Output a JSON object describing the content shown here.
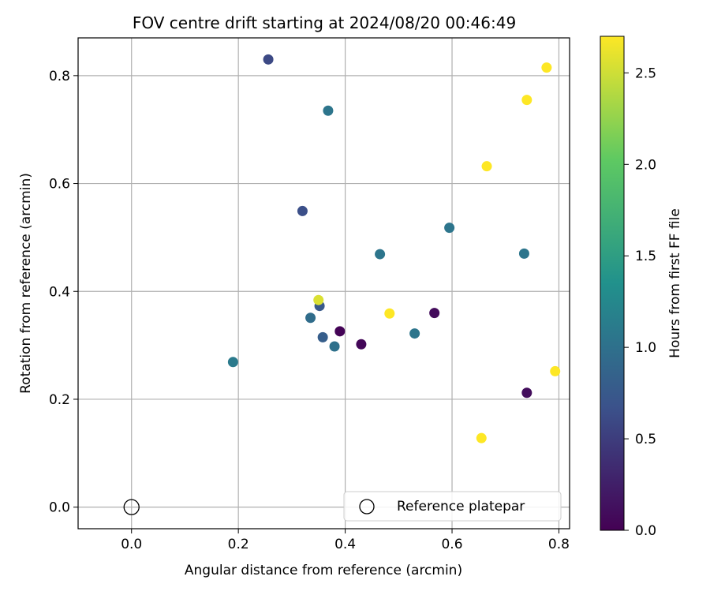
{
  "chart_data": {
    "type": "scatter",
    "title": "FOV centre drift starting at 2024/08/20 00:46:49",
    "xlabel": "Angular distance from reference (arcmin)",
    "ylabel": "Rotation from reference (arcmin)",
    "xlim": [
      -0.1,
      0.82
    ],
    "ylim": [
      -0.04,
      0.87
    ],
    "xticks": [
      0.0,
      0.2,
      0.4,
      0.6,
      0.8
    ],
    "xtick_labels": [
      "0.0",
      "0.2",
      "0.4",
      "0.6",
      "0.8"
    ],
    "yticks": [
      0.0,
      0.2,
      0.4,
      0.6,
      0.8
    ],
    "ytick_labels": [
      "0.0",
      "0.2",
      "0.4",
      "0.6",
      "0.8"
    ],
    "grid": true,
    "colormap": "viridis",
    "colormap_stops": [
      "#440154",
      "#3b528b",
      "#21918c",
      "#5ec962",
      "#fde725"
    ],
    "colorbar": {
      "label": "Hours from first FF file",
      "range": [
        0.0,
        2.7
      ],
      "ticks": [
        0.0,
        0.5,
        1.0,
        1.5,
        2.0,
        2.5
      ],
      "tick_labels": [
        "0.0",
        "0.5",
        "1.0",
        "1.5",
        "2.0",
        "2.5"
      ]
    },
    "legend": {
      "label": "Reference platepar",
      "placement": "lower-right"
    },
    "reference_point": {
      "x": 0.0,
      "y": 0.0
    },
    "points": [
      {
        "x": 0.39,
        "y": 0.326,
        "c": 0.02
      },
      {
        "x": 0.43,
        "y": 0.302,
        "c": 0.05
      },
      {
        "x": 0.567,
        "y": 0.36,
        "c": 0.08
      },
      {
        "x": 0.74,
        "y": 0.212,
        "c": 0.1
      },
      {
        "x": 0.256,
        "y": 0.83,
        "c": 0.6
      },
      {
        "x": 0.32,
        "y": 0.549,
        "c": 0.65
      },
      {
        "x": 0.352,
        "y": 0.373,
        "c": 0.75
      },
      {
        "x": 0.358,
        "y": 0.315,
        "c": 0.8
      },
      {
        "x": 0.335,
        "y": 0.351,
        "c": 0.95
      },
      {
        "x": 0.38,
        "y": 0.298,
        "c": 1.0
      },
      {
        "x": 0.368,
        "y": 0.735,
        "c": 1.05
      },
      {
        "x": 0.465,
        "y": 0.469,
        "c": 1.05
      },
      {
        "x": 0.53,
        "y": 0.322,
        "c": 1.05
      },
      {
        "x": 0.595,
        "y": 0.518,
        "c": 1.05
      },
      {
        "x": 0.735,
        "y": 0.47,
        "c": 1.05
      },
      {
        "x": 0.19,
        "y": 0.269,
        "c": 1.1
      },
      {
        "x": 0.35,
        "y": 0.384,
        "c": 2.55
      },
      {
        "x": 0.483,
        "y": 0.359,
        "c": 2.7
      },
      {
        "x": 0.655,
        "y": 0.128,
        "c": 2.7
      },
      {
        "x": 0.665,
        "y": 0.632,
        "c": 2.7
      },
      {
        "x": 0.74,
        "y": 0.755,
        "c": 2.7
      },
      {
        "x": 0.777,
        "y": 0.815,
        "c": 2.7
      },
      {
        "x": 0.793,
        "y": 0.252,
        "c": 2.7
      }
    ]
  }
}
